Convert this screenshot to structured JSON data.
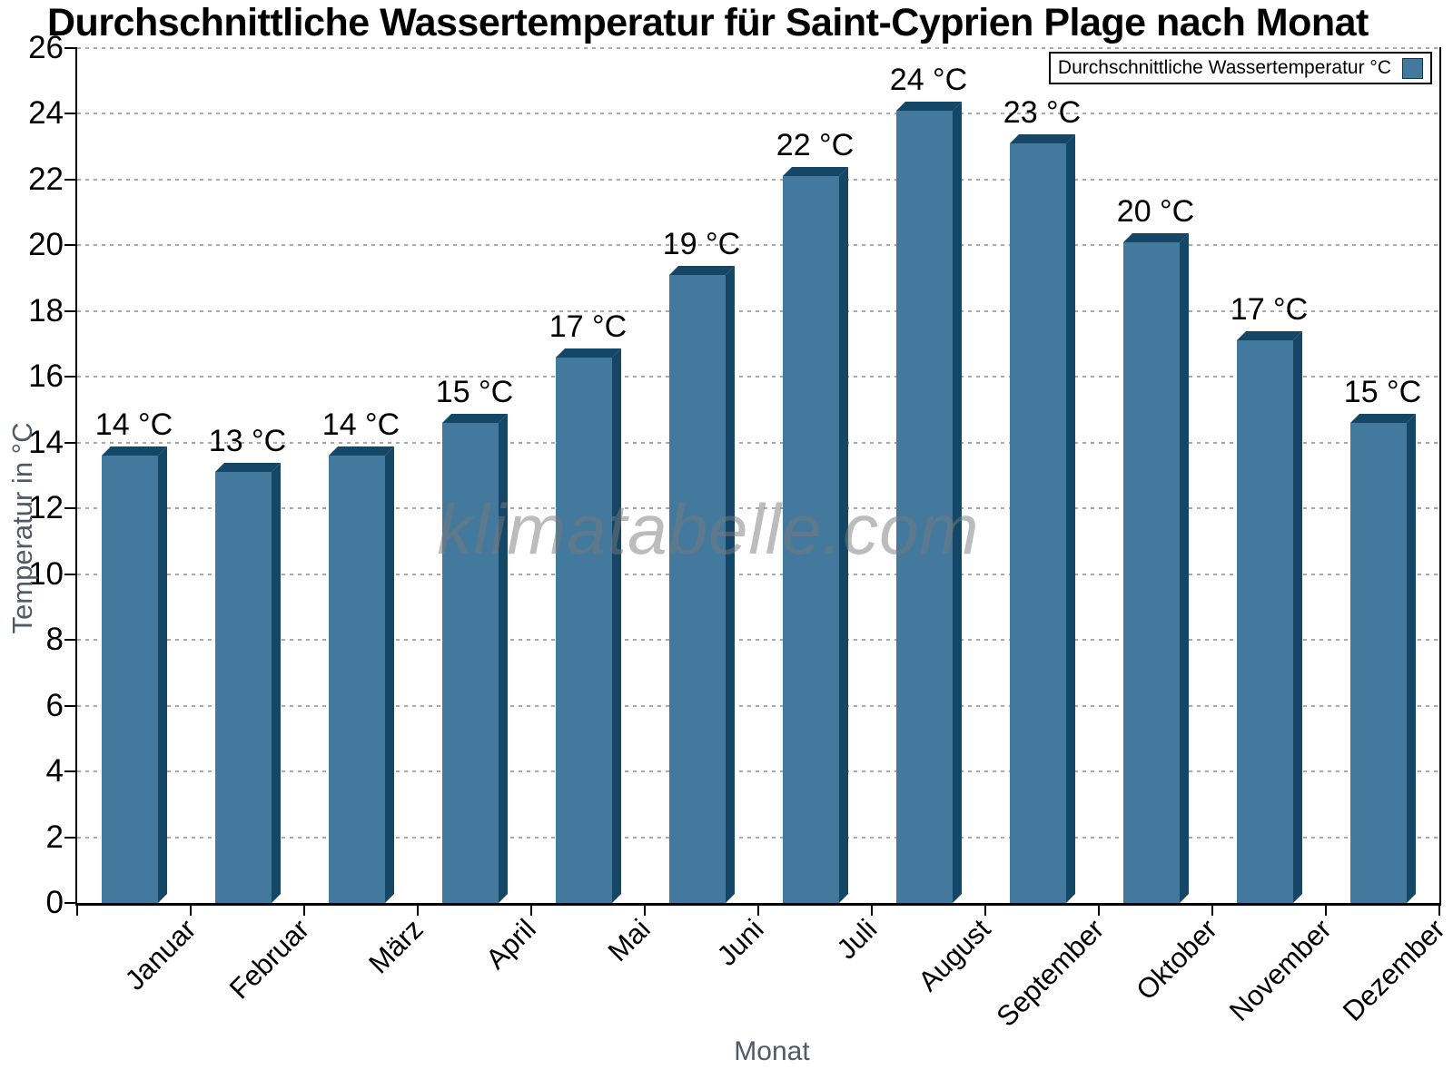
{
  "watermark": "klimatabelle.com",
  "legend": {
    "label": "Durchschnittliche Wassertemperatur °C"
  },
  "chart_data": {
    "type": "bar",
    "title": "Durchschnittliche Wassertemperatur für Saint-Cyprien Plage nach Monat",
    "xlabel": "Monat",
    "ylabel": "Temperatur in °C",
    "ylim": [
      0,
      26
    ],
    "ytick_step": 2,
    "grid": "horizontal-dotted",
    "legend_position": "top-right",
    "categories": [
      "Januar",
      "Februar",
      "März",
      "April",
      "Mai",
      "Juni",
      "Juli",
      "August",
      "September",
      "Oktober",
      "November",
      "Dezember"
    ],
    "values": [
      13.6,
      13.1,
      13.6,
      14.6,
      16.6,
      19.1,
      22.1,
      24.1,
      23.1,
      20.1,
      17.1,
      14.6
    ],
    "value_labels": [
      "14 °C",
      "13 °C",
      "14 °C",
      "15 °C",
      "17 °C",
      "19 °C",
      "22 °C",
      "24 °C",
      "23 °C",
      "20 °C",
      "17 °C",
      "15 °C"
    ],
    "bar_style": "3d-extruded",
    "colors": {
      "bar_face": "#44799e",
      "bar_shade": "#154666",
      "grid": "#ababab",
      "axis": "#000000",
      "axis_title": "#4e5a66",
      "text": "#000000"
    }
  }
}
